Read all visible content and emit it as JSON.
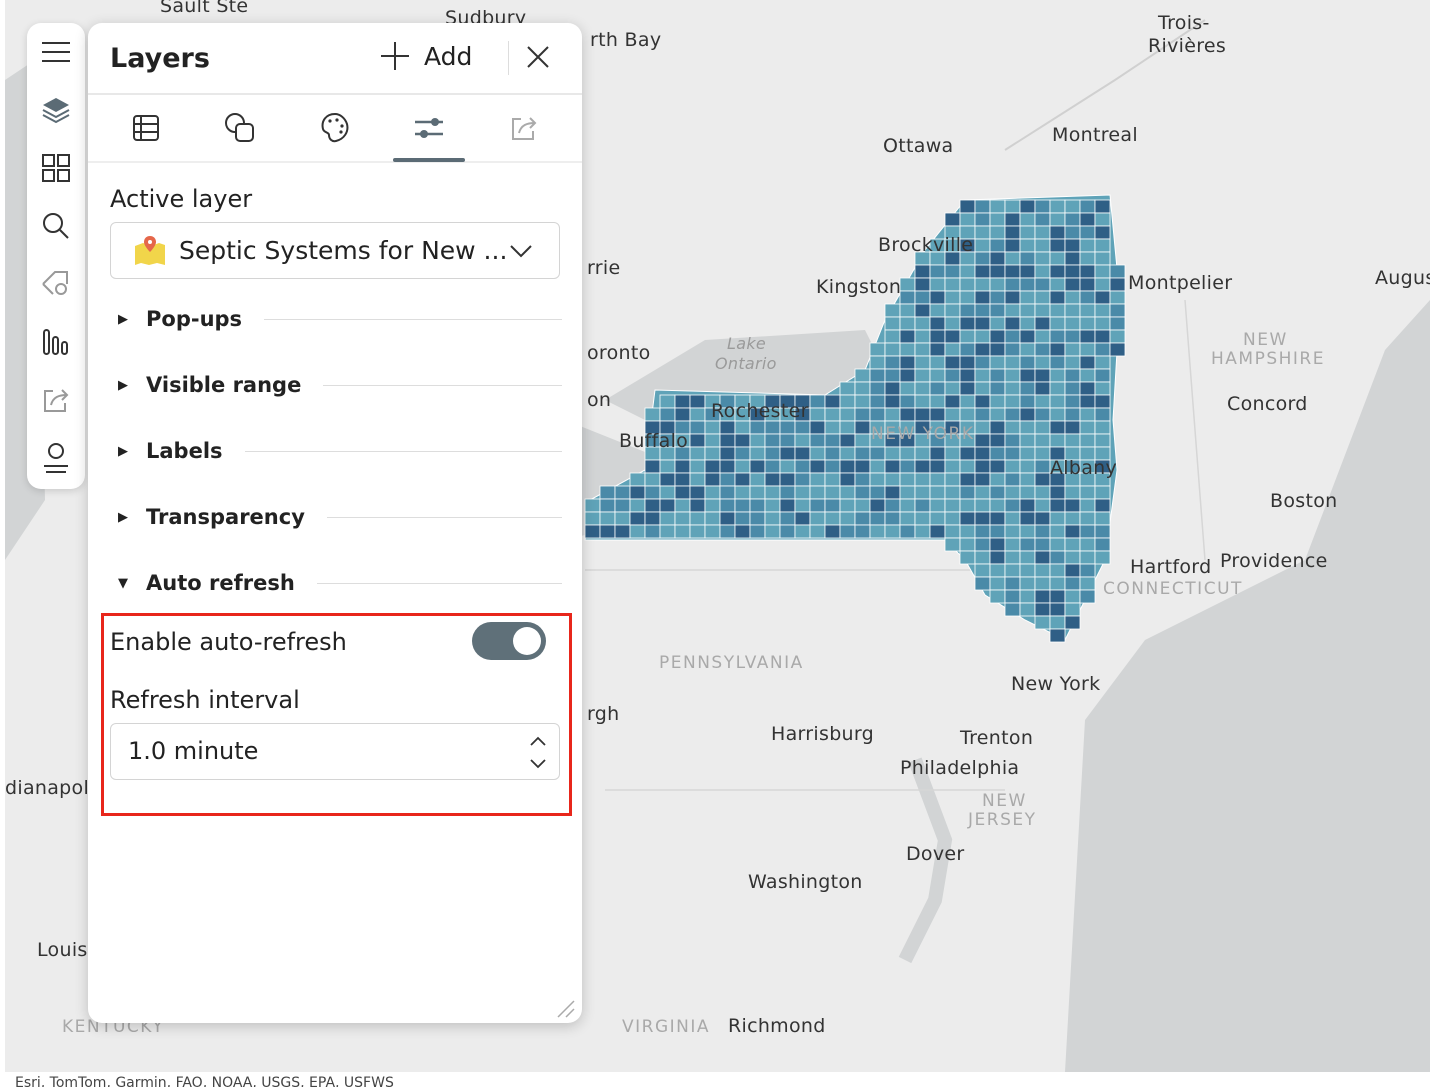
{
  "panel": {
    "title": "Layers",
    "add_label": "Add",
    "tabs": [
      "table",
      "properties",
      "style",
      "settings",
      "share"
    ],
    "active_tab": "settings",
    "active_layer_label": "Active layer",
    "active_layer_value": "Septic Systems for New ...",
    "sections": [
      {
        "label": "Pop-ups",
        "expanded": false
      },
      {
        "label": "Visible range",
        "expanded": false
      },
      {
        "label": "Labels",
        "expanded": false
      },
      {
        "label": "Transparency",
        "expanded": false
      },
      {
        "label": "Auto refresh",
        "expanded": true
      }
    ],
    "enable_auto_refresh_label": "Enable auto-refresh",
    "enable_auto_refresh": true,
    "refresh_interval_label": "Refresh interval",
    "refresh_interval_value": "1.0 minute"
  },
  "rail": [
    "menu",
    "layers",
    "basemap",
    "search",
    "locate",
    "charts",
    "share",
    "account"
  ],
  "map": {
    "labels": [
      "Sault Ste",
      "Sudbury",
      "rth Bay",
      "Trois-",
      "Rivières",
      "Ottawa",
      "Montreal",
      "Brockville",
      "Kingston",
      "Montpelier",
      "Augus",
      "rrie",
      "Lake",
      "Ontario",
      "oronto",
      "on",
      "Rochester",
      "Buffalo",
      "NEW YORK",
      "Albany",
      "NEW",
      "HAMPSHIRE",
      "Concord",
      "Boston",
      "Hartford",
      "Providence",
      "CONNECTICUT",
      "PENNSYLVANIA",
      "New York",
      "rgh",
      "Harrisburg",
      "Trenton",
      "Philadelphia",
      "NEW",
      "JERSEY",
      "dianapol",
      "Dover",
      "Washington",
      "Louisv",
      "KENTUCKY",
      "VIRGINIA",
      "Richmond"
    ],
    "attribution": "Esri, TomTom, Garmin, FAO, NOAA, USGS, EPA, USFWS",
    "colors": {
      "fill_light": "#5fa3b8",
      "fill_dark": "#2f5f86",
      "fill_mid": "#4a8aa8"
    }
  }
}
